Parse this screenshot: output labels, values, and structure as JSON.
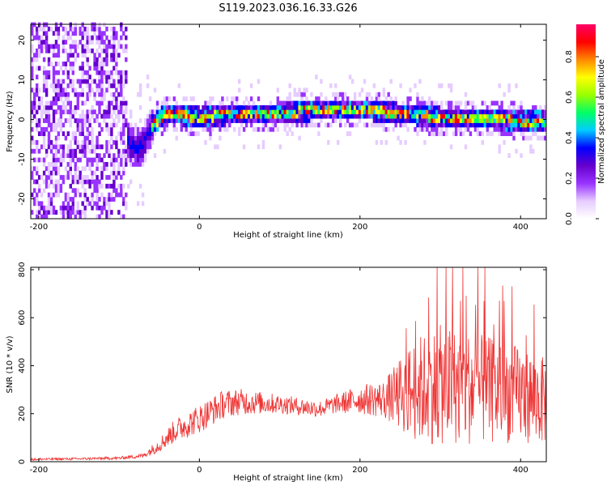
{
  "title": "S119.2023.036.16.33.G26",
  "chart_data": [
    {
      "type": "heatmap",
      "xlabel": "Height of straight line (km)",
      "ylabel": "Frequency (Hz)",
      "xlim": [
        -210,
        432
      ],
      "ylim": [
        -25,
        24
      ],
      "xticks": [
        -200,
        0,
        200,
        400
      ],
      "yticks": [
        20,
        10,
        0,
        -10,
        -20
      ],
      "colorbar": {
        "label": "Normalized spectral amplitude",
        "range": [
          0,
          0.96
        ],
        "ticks": [
          "0.0",
          "0.2",
          "0.4",
          "0.6",
          "0.8"
        ],
        "colors": [
          "#ffffff",
          "#e6ccff",
          "#9933ff",
          "#6600cc",
          "#0000ff",
          "#00ccff",
          "#00ff66",
          "#99ff00",
          "#ffff00",
          "#ff8800",
          "#ff0000",
          "#ff0066"
        ]
      },
      "ridge": {
        "x": [
          -120,
          -100,
          -90,
          -80,
          -72,
          -65,
          -60,
          -50,
          -40,
          0,
          50,
          100,
          150,
          200,
          250,
          300,
          350,
          400,
          432
        ],
        "y": [
          -1,
          -3,
          -6,
          -8,
          -7,
          -4,
          -2,
          0,
          1,
          0,
          1,
          1,
          2,
          2,
          1,
          0,
          0,
          -1,
          -1
        ]
      }
    },
    {
      "type": "line",
      "xlabel": "Height of straight line (km)",
      "ylabel": "SNR (10 * v/v)",
      "xlim": [
        -210,
        432
      ],
      "ylim": [
        0,
        810
      ],
      "xticks": [
        -200,
        0,
        200,
        400
      ],
      "yticks": [
        0,
        200,
        400,
        600,
        800
      ],
      "color": "#ee3333",
      "envelope": {
        "x": [
          -210,
          -150,
          -100,
          -70,
          -50,
          -30,
          0,
          20,
          30,
          50,
          100,
          150,
          170,
          200,
          230,
          250,
          270,
          300,
          350,
          400,
          432
        ],
        "mean": [
          10,
          12,
          15,
          25,
          70,
          130,
          180,
          220,
          240,
          250,
          240,
          220,
          240,
          260,
          260,
          280,
          300,
          320,
          300,
          280,
          250
        ],
        "spread": [
          5,
          5,
          6,
          10,
          30,
          50,
          60,
          60,
          60,
          55,
          40,
          35,
          40,
          60,
          80,
          150,
          220,
          250,
          230,
          200,
          180
        ]
      }
    }
  ]
}
